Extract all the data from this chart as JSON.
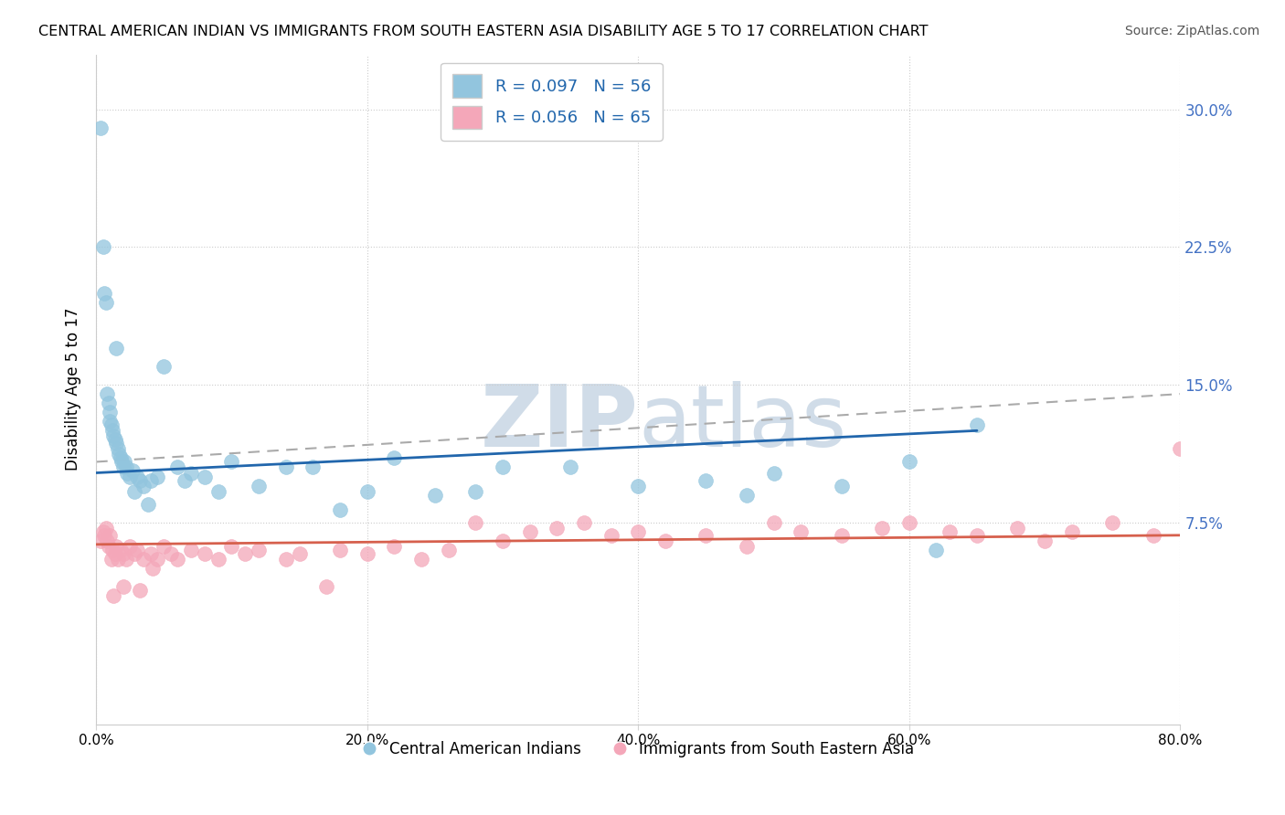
{
  "title": "CENTRAL AMERICAN INDIAN VS IMMIGRANTS FROM SOUTH EASTERN ASIA DISABILITY AGE 5 TO 17 CORRELATION CHART",
  "source": "Source: ZipAtlas.com",
  "ylabel": "Disability Age 5 to 17",
  "xlim": [
    0.0,
    80.0
  ],
  "ylim": [
    -3.5,
    33.0
  ],
  "blue_R": 0.097,
  "blue_N": 56,
  "pink_R": 0.056,
  "pink_N": 65,
  "blue_color": "#92c5de",
  "pink_color": "#f4a7b9",
  "blue_line_color": "#2166ac",
  "pink_line_color": "#d6604d",
  "watermark_color": "#d0dce8",
  "legend_label_blue": "Central American Indians",
  "legend_label_pink": "Immigrants from South Eastern Asia",
  "blue_scatter_x": [
    0.3,
    0.5,
    0.6,
    0.7,
    0.8,
    0.9,
    1.0,
    1.0,
    1.1,
    1.2,
    1.3,
    1.4,
    1.5,
    1.6,
    1.7,
    1.8,
    1.9,
    2.0,
    2.1,
    2.2,
    2.3,
    2.5,
    2.7,
    3.0,
    3.2,
    3.5,
    4.0,
    4.5,
    5.0,
    6.0,
    7.0,
    8.0,
    10.0,
    12.0,
    14.0,
    16.0,
    20.0,
    22.0,
    25.0,
    28.0,
    30.0,
    35.0,
    40.0,
    45.0,
    48.0,
    50.0,
    55.0,
    60.0,
    62.0,
    65.0,
    1.5,
    2.8,
    3.8,
    6.5,
    9.0,
    18.0
  ],
  "blue_scatter_y": [
    29.0,
    22.5,
    20.0,
    19.5,
    14.5,
    14.0,
    13.5,
    13.0,
    12.8,
    12.5,
    12.2,
    12.0,
    11.8,
    11.5,
    11.2,
    11.0,
    10.8,
    10.5,
    10.8,
    10.5,
    10.2,
    10.0,
    10.3,
    10.0,
    9.8,
    9.5,
    9.8,
    10.0,
    16.0,
    10.5,
    10.2,
    10.0,
    10.8,
    9.5,
    10.5,
    10.5,
    9.2,
    11.0,
    9.0,
    9.2,
    10.5,
    10.5,
    9.5,
    9.8,
    9.0,
    10.2,
    9.5,
    10.8,
    6.0,
    12.8,
    17.0,
    9.2,
    8.5,
    9.8,
    9.2,
    8.2
  ],
  "pink_scatter_x": [
    0.3,
    0.5,
    0.6,
    0.7,
    0.8,
    0.9,
    1.0,
    1.1,
    1.2,
    1.4,
    1.5,
    1.6,
    1.8,
    2.0,
    2.2,
    2.5,
    2.8,
    3.0,
    3.5,
    4.0,
    4.5,
    5.0,
    5.5,
    6.0,
    7.0,
    8.0,
    9.0,
    10.0,
    11.0,
    12.0,
    14.0,
    15.0,
    17.0,
    18.0,
    20.0,
    22.0,
    24.0,
    26.0,
    28.0,
    30.0,
    32.0,
    34.0,
    36.0,
    38.0,
    40.0,
    42.0,
    45.0,
    48.0,
    50.0,
    52.0,
    55.0,
    58.0,
    60.0,
    63.0,
    65.0,
    68.0,
    70.0,
    72.0,
    75.0,
    78.0,
    80.0,
    1.3,
    2.0,
    3.2,
    4.2
  ],
  "pink_scatter_y": [
    6.5,
    7.0,
    6.8,
    7.2,
    6.5,
    6.2,
    6.8,
    5.5,
    6.0,
    5.8,
    6.2,
    5.5,
    6.0,
    5.8,
    5.5,
    6.2,
    5.8,
    6.0,
    5.5,
    5.8,
    5.5,
    6.2,
    5.8,
    5.5,
    6.0,
    5.8,
    5.5,
    6.2,
    5.8,
    6.0,
    5.5,
    5.8,
    4.0,
    6.0,
    5.8,
    6.2,
    5.5,
    6.0,
    7.5,
    6.5,
    7.0,
    7.2,
    7.5,
    6.8,
    7.0,
    6.5,
    6.8,
    6.2,
    7.5,
    7.0,
    6.8,
    7.2,
    7.5,
    7.0,
    6.8,
    7.2,
    6.5,
    7.0,
    7.5,
    6.8,
    11.5,
    3.5,
    4.0,
    3.8,
    5.0
  ],
  "blue_trend_x0": 0.0,
  "blue_trend_x1": 65.0,
  "blue_trend_y0": 10.2,
  "blue_trend_y1": 12.5,
  "pink_trend_x0": 0.0,
  "pink_trend_x1": 80.0,
  "pink_trend_y0": 6.3,
  "pink_trend_y1": 6.8,
  "dash_x0": 0.0,
  "dash_x1": 80.0,
  "dash_y0": 10.8,
  "dash_y1": 14.5,
  "x_tick_vals": [
    0,
    20,
    40,
    60,
    80
  ],
  "y_tick_vals": [
    7.5,
    15.0,
    22.5,
    30.0
  ]
}
